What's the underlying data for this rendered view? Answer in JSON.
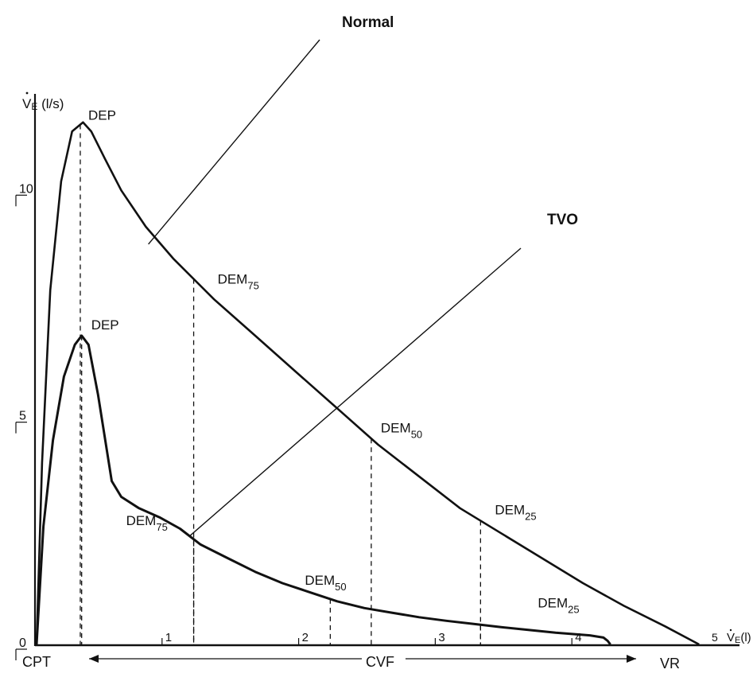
{
  "chart_data": {
    "type": "line",
    "title": "",
    "y_axis_label": {
      "main": "V",
      "sub": "E",
      "unit": "(l/s)"
    },
    "x_axis_label": {
      "main": "V",
      "sub": "E",
      "unit": "(l)"
    },
    "xlim": [
      0,
      5
    ],
    "ylim": [
      0,
      11.6
    ],
    "y_ticks": [
      "0",
      "5",
      "10"
    ],
    "x_ticks": [
      "1",
      "2",
      "3",
      "4",
      "5"
    ],
    "bottom_axis": {
      "left": "CPT",
      "middle": "CVF",
      "right": "VR"
    },
    "series": [
      {
        "name": "Normal",
        "x": [
          0,
          0.04,
          0.1,
          0.18,
          0.26,
          0.34,
          0.4,
          0.5,
          0.62,
          0.8,
          1.0,
          1.3,
          1.6,
          1.9,
          2.2,
          2.5,
          2.8,
          3.1,
          3.4,
          3.7,
          4.0,
          4.3,
          4.6,
          4.85
        ],
        "y": [
          0.0,
          4.0,
          7.8,
          10.2,
          11.3,
          11.5,
          11.3,
          10.7,
          10.0,
          9.2,
          8.5,
          7.6,
          6.8,
          6.0,
          5.2,
          4.4,
          3.7,
          3.0,
          2.45,
          1.9,
          1.35,
          0.85,
          0.4,
          0.0
        ],
        "annotations": [
          {
            "label": "DEP",
            "x": 0.32,
            "y": 11.5
          },
          {
            "label": "DEM",
            "sub": "75",
            "x": 1.15,
            "y": 8.3
          },
          {
            "label": "DEM",
            "sub": "50",
            "x": 2.45,
            "y": 4.5
          },
          {
            "label": "DEM",
            "sub": "25",
            "x": 3.25,
            "y": 2.75
          }
        ]
      },
      {
        "name": "TVO",
        "x": [
          0,
          0.05,
          0.12,
          0.2,
          0.28,
          0.33,
          0.38,
          0.45,
          0.55,
          0.62,
          0.75,
          0.9,
          1.05,
          1.2,
          1.4,
          1.6,
          1.8,
          2.0,
          2.2,
          2.4,
          2.6,
          2.8,
          3.0,
          3.2,
          3.4,
          3.6,
          3.8,
          4.05,
          4.15,
          4.18,
          4.2
        ],
        "y": [
          0.0,
          2.6,
          4.5,
          5.9,
          6.6,
          6.8,
          6.6,
          5.5,
          3.6,
          3.25,
          3.0,
          2.8,
          2.55,
          2.2,
          1.9,
          1.6,
          1.35,
          1.15,
          0.95,
          0.8,
          0.7,
          0.6,
          0.52,
          0.45,
          0.38,
          0.32,
          0.26,
          0.2,
          0.15,
          0.08,
          0.0
        ],
        "annotations": [
          {
            "label": "DEP",
            "x": 0.33,
            "y": 6.8
          },
          {
            "label": "DEM",
            "sub": "75",
            "x": 1.15,
            "y": 2.7
          },
          {
            "label": "DEM",
            "sub": "50",
            "x": 2.15,
            "y": 1.0
          },
          {
            "label": "DEM",
            "sub": "25",
            "x": 3.25,
            "y": 0.45
          }
        ]
      }
    ],
    "grid": false,
    "legend": "none"
  }
}
